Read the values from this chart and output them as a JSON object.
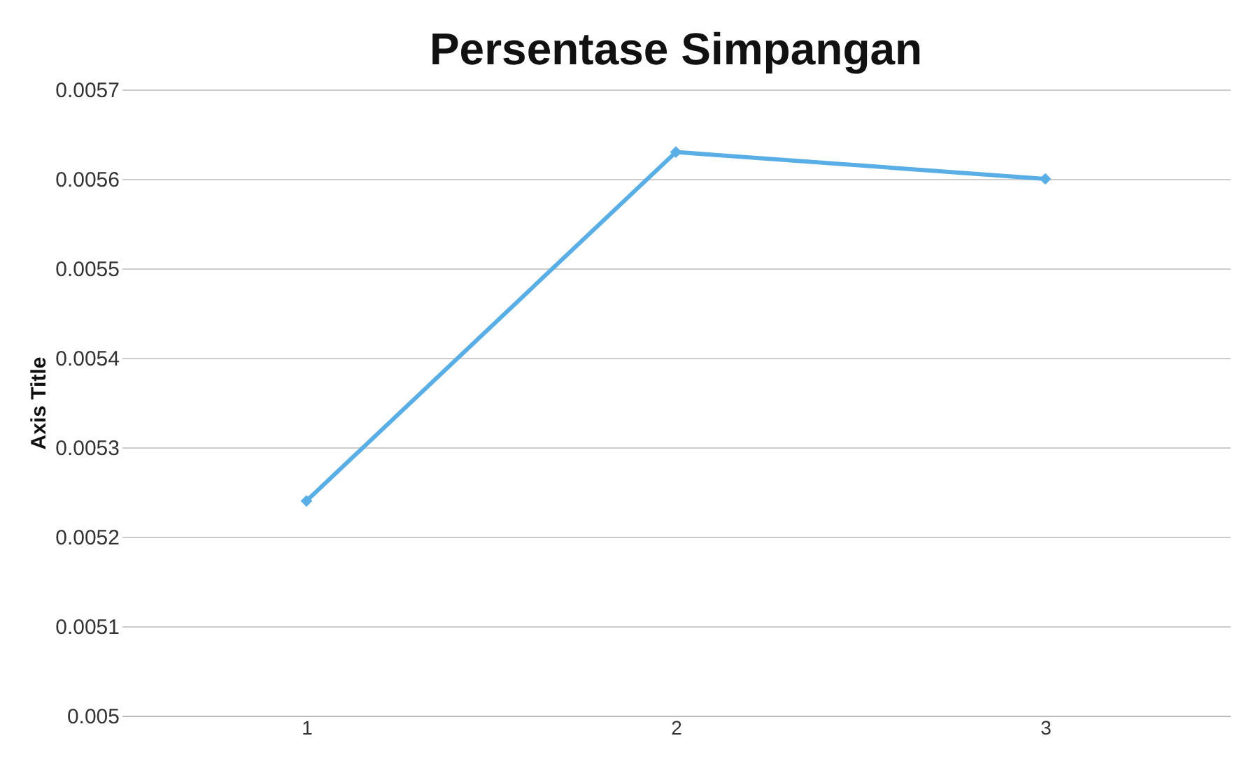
{
  "chart_data": {
    "type": "line",
    "title": "Persentase Simpangan",
    "ylabel": "Axis Title",
    "categories": [
      "1",
      "2",
      "3"
    ],
    "series": [
      {
        "color": "#5aaee6",
        "values": [
          0.00524,
          0.00563,
          0.0056
        ]
      }
    ],
    "ylim": [
      0.005,
      0.0057
    ],
    "yticks": [
      0.005,
      0.0051,
      0.0052,
      0.0053,
      0.0054,
      0.0055,
      0.0056,
      0.0057
    ],
    "grid": "y",
    "marker": "diamond",
    "line_style": "solid",
    "legend": false
  }
}
